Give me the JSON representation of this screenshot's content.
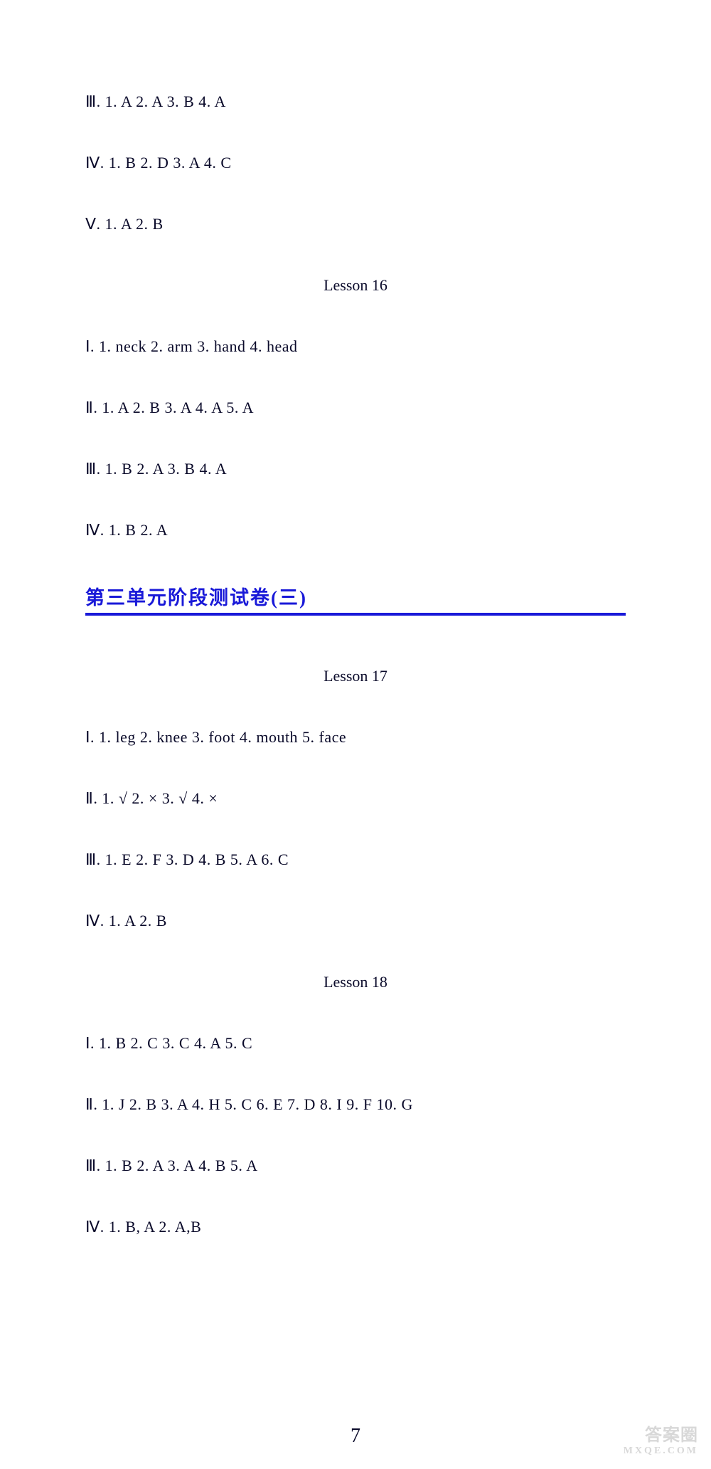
{
  "colors": {
    "text": "#0a0a2a",
    "link": "#1919d8",
    "background": "#ffffff",
    "watermark": "#d8d8d8"
  },
  "typography": {
    "body_fontsize": 22,
    "section_title_fontsize": 27,
    "font_family": "Times New Roman, SimSun, serif"
  },
  "lines": {
    "l1": "Ⅲ. 1. A   2. A   3. B   4. A",
    "l2": "Ⅳ. 1. B   2. D   3. A   4. C",
    "l3": "Ⅴ. 1. A   2. B",
    "lesson16": "Lesson 16",
    "l4": "Ⅰ. 1. neck   2. arm   3. hand   4. head",
    "l5": "Ⅱ. 1. A   2. B   3. A   4. A   5. A",
    "l6": "Ⅲ. 1. B   2. A   3. B   4. A",
    "l7": "Ⅳ. 1. B   2. A",
    "section_title": "第三单元阶段测试卷(三)",
    "lesson17": "Lesson 17",
    "l8": "Ⅰ. 1. leg   2. knee   3. foot   4. mouth   5. face",
    "l9": "Ⅱ. 1. √   2. ×   3. √   4. ×",
    "l10": "Ⅲ. 1. E   2. F   3. D   4. B   5. A   6. C",
    "l11": "Ⅳ. 1. A   2. B",
    "lesson18": "Lesson 18",
    "l12": "Ⅰ. 1. B   2. C   3. C   4. A   5. C",
    "l13": "Ⅱ. 1. J   2. B   3. A   4. H   5. C   6. E   7. D   8. I   9. F   10. G",
    "l14": "Ⅲ. 1. B   2. A   3. A   4. B   5. A",
    "l15": "Ⅳ. 1. B, A   2. A,B"
  },
  "page_number": "7",
  "watermark": {
    "main": "答案圈",
    "sub": "MXQE.COM"
  }
}
